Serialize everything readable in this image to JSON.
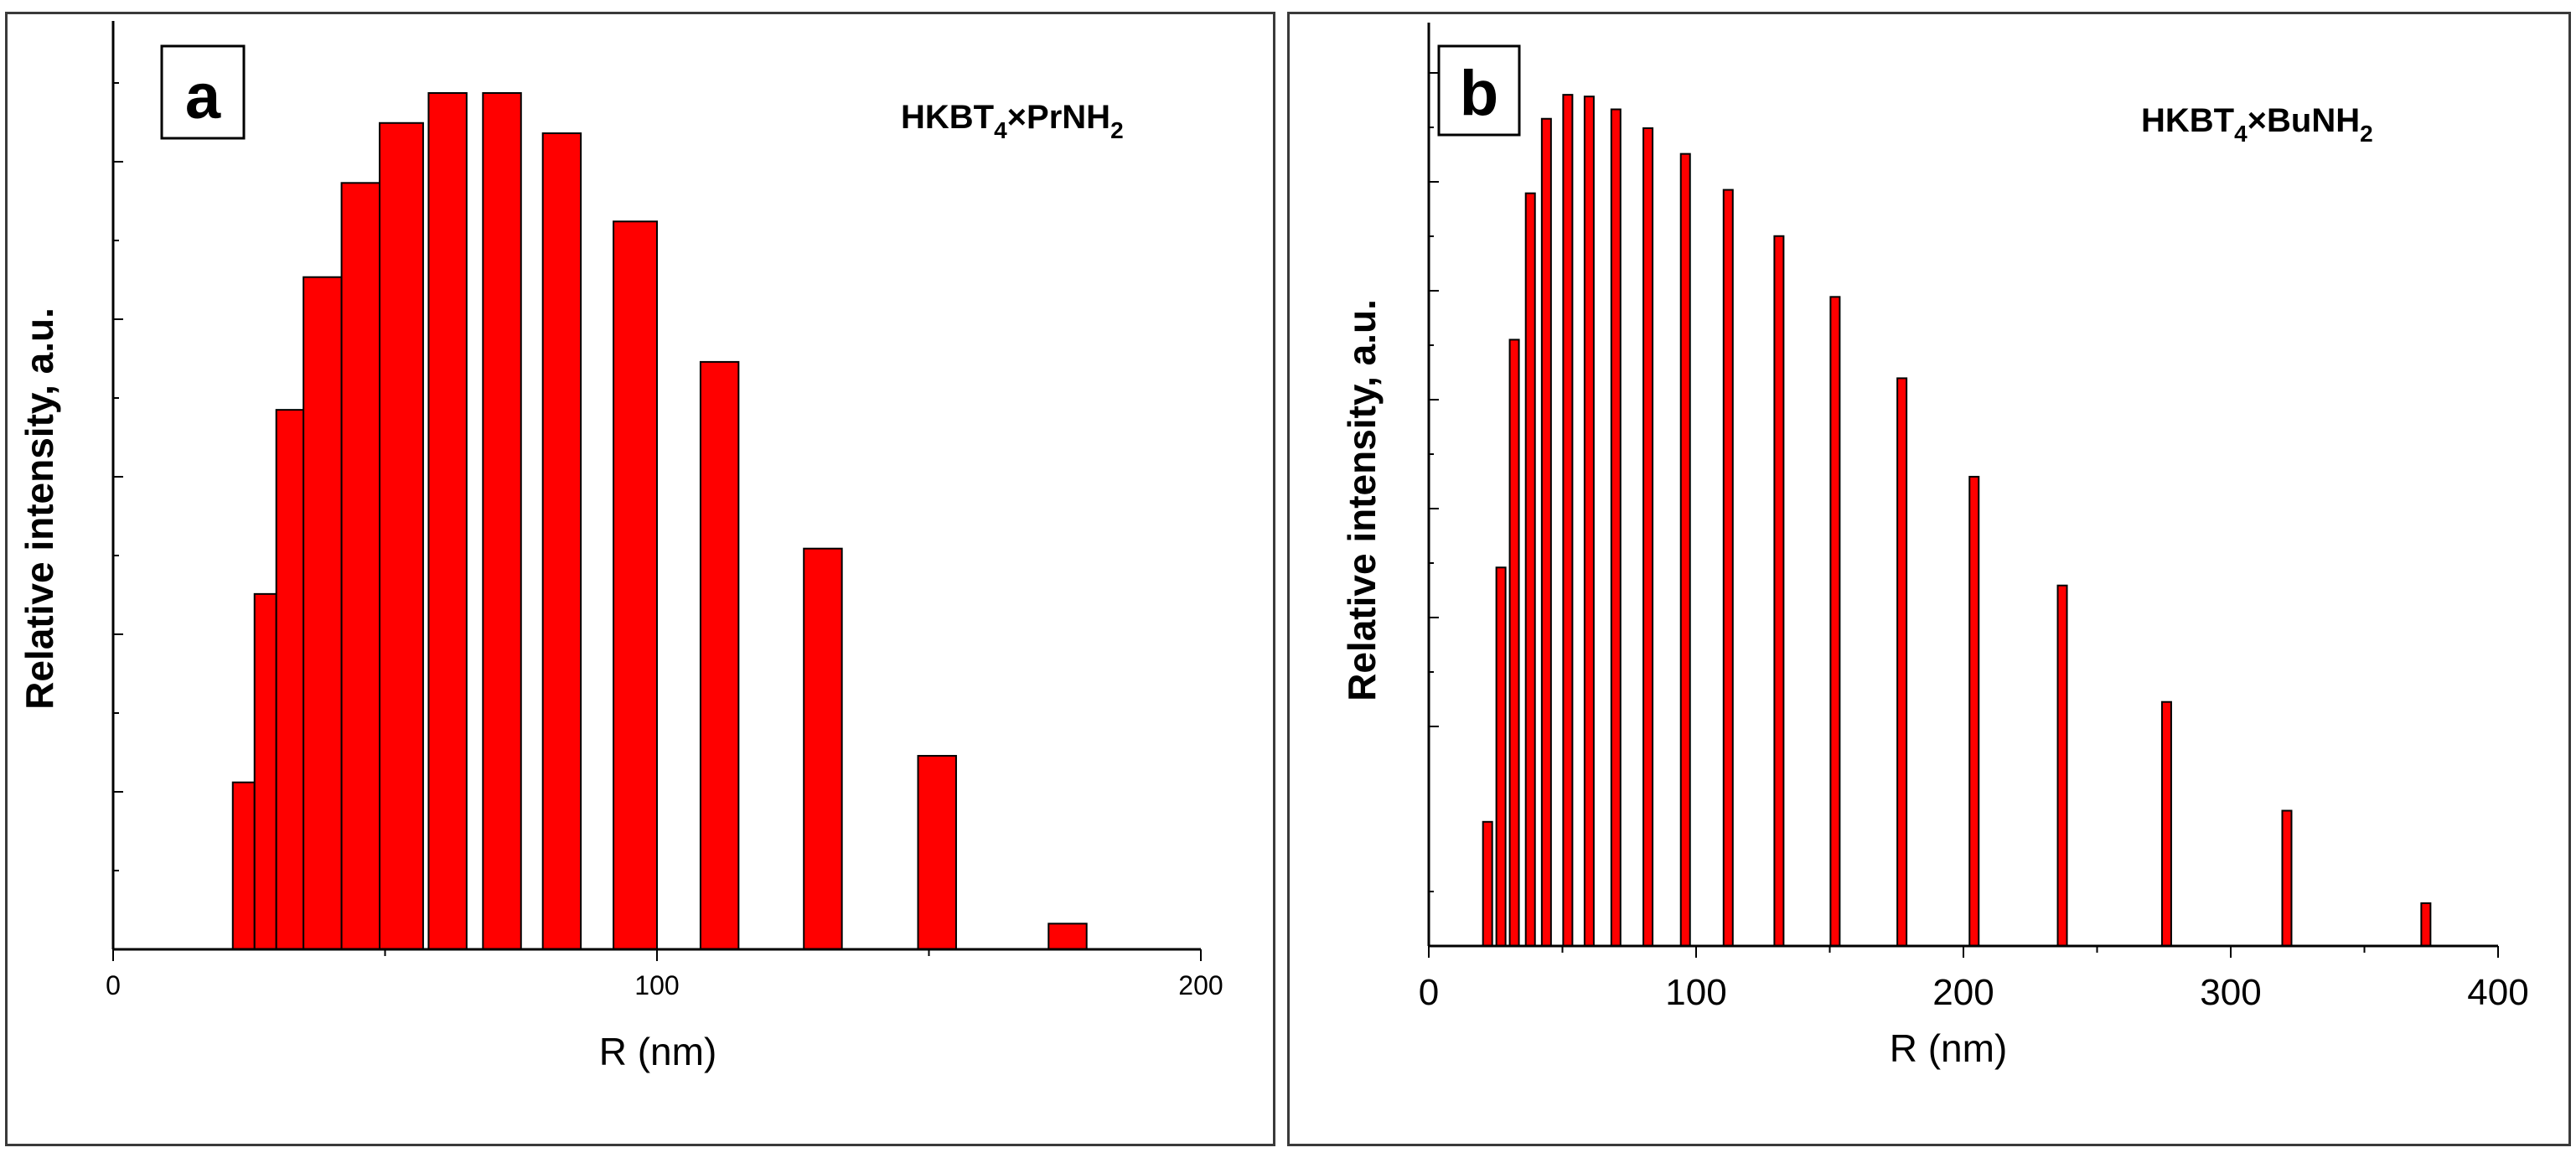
{
  "chart_data": [
    {
      "type": "bar",
      "panel_label": "a",
      "series_label": {
        "base": "HKBT",
        "sub1": "4",
        "mid": "×PrNH",
        "sub2": "2"
      },
      "xlabel": "R (nm)",
      "ylabel": "Relative intensity, a.u.",
      "xlim": [
        0,
        200
      ],
      "ylim": [
        0,
        100
      ],
      "xticks": [
        "0",
        "100",
        "200"
      ],
      "bar_color": "#ff0000",
      "bars": [
        {
          "x0": 22,
          "x1": 26,
          "value": 19.5
        },
        {
          "x0": 26,
          "x1": 30,
          "value": 41.5
        },
        {
          "x0": 30,
          "x1": 35,
          "value": 63
        },
        {
          "x0": 35,
          "x1": 42,
          "value": 78.5
        },
        {
          "x0": 42,
          "x1": 49,
          "value": 89.5
        },
        {
          "x0": 49,
          "x1": 57,
          "value": 96.5
        },
        {
          "x0": 58,
          "x1": 65,
          "value": 100
        },
        {
          "x0": 68,
          "x1": 75,
          "value": 100
        },
        {
          "x0": 79,
          "x1": 86,
          "value": 95.3
        },
        {
          "x0": 92,
          "x1": 100,
          "value": 85
        },
        {
          "x0": 108,
          "x1": 115,
          "value": 68.6
        },
        {
          "x0": 127,
          "x1": 134,
          "value": 46.8
        },
        {
          "x0": 148,
          "x1": 155,
          "value": 22.6
        },
        {
          "x0": 172,
          "x1": 179,
          "value": 3.0
        }
      ]
    },
    {
      "type": "bar",
      "panel_label": "b",
      "series_label": {
        "base": "HKBT",
        "sub1": "4",
        "mid": "×BuNH",
        "sub2": "2"
      },
      "xlabel": "R (nm)",
      "ylabel": "Relative intensity, a.u.",
      "xlim": [
        0,
        400
      ],
      "ylim": [
        0,
        100
      ],
      "xticks": [
        "0",
        "100",
        "200",
        "300",
        "400"
      ],
      "bar_color": "#ff0000",
      "bars": [
        {
          "x": 22,
          "value": 14.5
        },
        {
          "x": 27,
          "value": 44.2
        },
        {
          "x": 32,
          "value": 70.8
        },
        {
          "x": 38,
          "value": 87.9
        },
        {
          "x": 44,
          "value": 96.6
        },
        {
          "x": 52,
          "value": 99.4
        },
        {
          "x": 60,
          "value": 99.2
        },
        {
          "x": 70,
          "value": 97.7
        },
        {
          "x": 82,
          "value": 95.5
        },
        {
          "x": 96,
          "value": 92.5
        },
        {
          "x": 112,
          "value": 88.3
        },
        {
          "x": 131,
          "value": 82.9
        },
        {
          "x": 152,
          "value": 75.8
        },
        {
          "x": 177,
          "value": 66.3
        },
        {
          "x": 204,
          "value": 54.8
        },
        {
          "x": 237,
          "value": 42.1
        },
        {
          "x": 276,
          "value": 28.5
        },
        {
          "x": 321,
          "value": 15.8
        },
        {
          "x": 373,
          "value": 5.0
        }
      ]
    }
  ]
}
